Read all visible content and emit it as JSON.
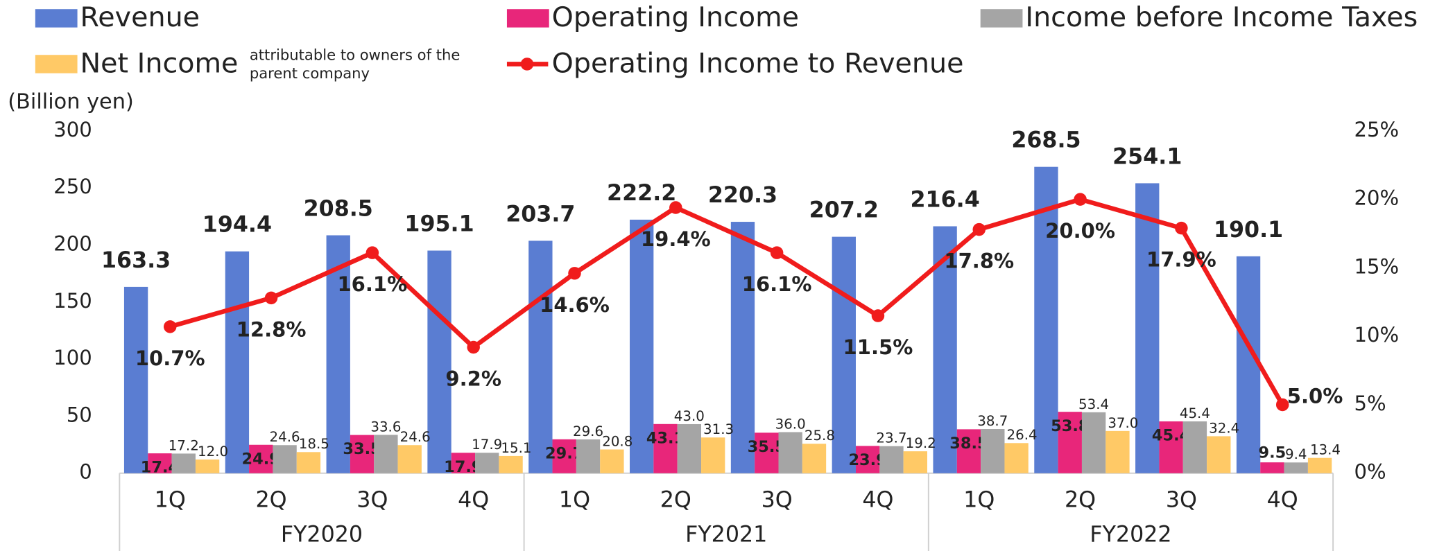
{
  "chart_data": {
    "type": "bar",
    "y_label": "(Billion yen)",
    "legend_note": [
      "attributable to owners of the",
      "parent company"
    ],
    "categories": [
      "1Q",
      "2Q",
      "3Q",
      "4Q",
      "1Q",
      "2Q",
      "3Q",
      "4Q",
      "1Q",
      "2Q",
      "3Q",
      "4Q"
    ],
    "groups": [
      "FY2020",
      "FY2021",
      "FY2022"
    ],
    "ylim": [
      0,
      300
    ],
    "yticks": [
      0,
      50,
      100,
      150,
      200,
      250,
      300
    ],
    "y2lim": [
      0,
      25
    ],
    "y2ticks": [
      {
        "value": 0,
        "label": "0%"
      },
      {
        "value": 5,
        "label": "5%"
      },
      {
        "value": 10,
        "label": "10%"
      },
      {
        "value": 15,
        "label": "15%"
      },
      {
        "value": 20,
        "label": "20%"
      },
      {
        "value": 25,
        "label": "25%"
      }
    ],
    "series": [
      {
        "name": "Revenue",
        "type": "bar",
        "color": "#5a7dd2",
        "values": [
          163.3,
          194.4,
          208.5,
          195.1,
          203.7,
          222.2,
          220.3,
          207.2,
          216.4,
          268.5,
          254.1,
          190.1
        ],
        "value_labels": [
          "163.3",
          "194.4",
          "208.5",
          "195.1",
          "203.7",
          "222.2",
          "220.3",
          "207.2",
          "216.4",
          "268.5",
          "254.1",
          "190.1"
        ]
      },
      {
        "name": "Operating Income",
        "type": "bar",
        "color": "#e8267a",
        "values": [
          17.4,
          24.9,
          33.5,
          17.9,
          29.7,
          43.1,
          35.5,
          23.9,
          38.5,
          53.8,
          45.4,
          9.5
        ],
        "value_labels": [
          "17.4",
          "24.9",
          "33.5",
          "17.9",
          "29.7",
          "43.1",
          "35.5",
          "23.9",
          "38.5",
          "53.8",
          "45.4",
          "9.5"
        ]
      },
      {
        "name": "Income before Income Taxes",
        "type": "bar",
        "color": "#a5a5a5",
        "values": [
          17.2,
          24.6,
          33.6,
          17.9,
          29.6,
          43.0,
          36.0,
          23.7,
          38.7,
          53.4,
          45.4,
          9.4
        ],
        "value_labels": [
          "17.2",
          "24.6",
          "33.6",
          "17.9",
          "29.6",
          "43.0",
          "36.0",
          "23.7",
          "38.7",
          "53.4",
          "45.4",
          "9.4"
        ]
      },
      {
        "name": "Net Income",
        "type": "bar",
        "color": "#ffc966",
        "values": [
          12.0,
          18.5,
          24.6,
          15.1,
          20.8,
          31.3,
          25.8,
          19.2,
          26.4,
          37.0,
          32.4,
          13.4
        ],
        "value_labels": [
          "12.0",
          "18.5",
          "24.6",
          "15.1",
          "20.8",
          "31.3",
          "25.8",
          "19.2",
          "26.4",
          "37.0",
          "32.4",
          "13.4"
        ]
      },
      {
        "name": "Operating Income to Revenue",
        "type": "line",
        "axis": "y2",
        "color": "#f01c1c",
        "values": [
          10.7,
          12.8,
          16.1,
          9.2,
          14.6,
          19.4,
          16.1,
          11.5,
          17.8,
          20.0,
          17.9,
          5.0
        ],
        "value_labels": [
          "10.7%",
          "12.8%",
          "16.1%",
          "9.2%",
          "14.6%",
          "19.4%",
          "16.1%",
          "11.5%",
          "17.8%",
          "20.0%",
          "17.9%",
          "5.0%"
        ]
      }
    ]
  }
}
